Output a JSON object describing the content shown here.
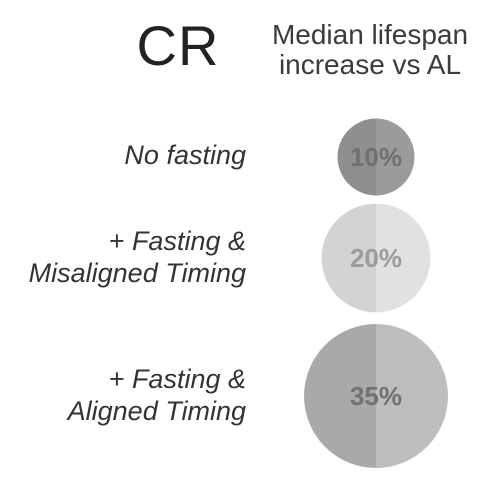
{
  "chart_data": {
    "type": "bubble",
    "title": "CR",
    "column_header": [
      "Median lifespan",
      "increase vs AL"
    ],
    "rows": [
      {
        "label_lines": [
          "No fasting"
        ],
        "value": 10,
        "value_label": "10%",
        "colors": {
          "left": "#8f8f8f",
          "right": "#9b9b9b",
          "text": "#6f6f6f"
        }
      },
      {
        "label_lines": [
          "+ Fasting &",
          "Misaligned Timing"
        ],
        "value": 20,
        "value_label": "20%",
        "colors": {
          "left": "#d3d3d3",
          "right": "#e1e1e1",
          "text": "#9a9a9a"
        }
      },
      {
        "label_lines": [
          "+ Fasting &",
          "Aligned Timing"
        ],
        "value": 35,
        "value_label": "35%",
        "colors": {
          "left": "#a9a9a9",
          "right": "#bdbdbd",
          "text": "#717171"
        }
      }
    ]
  }
}
